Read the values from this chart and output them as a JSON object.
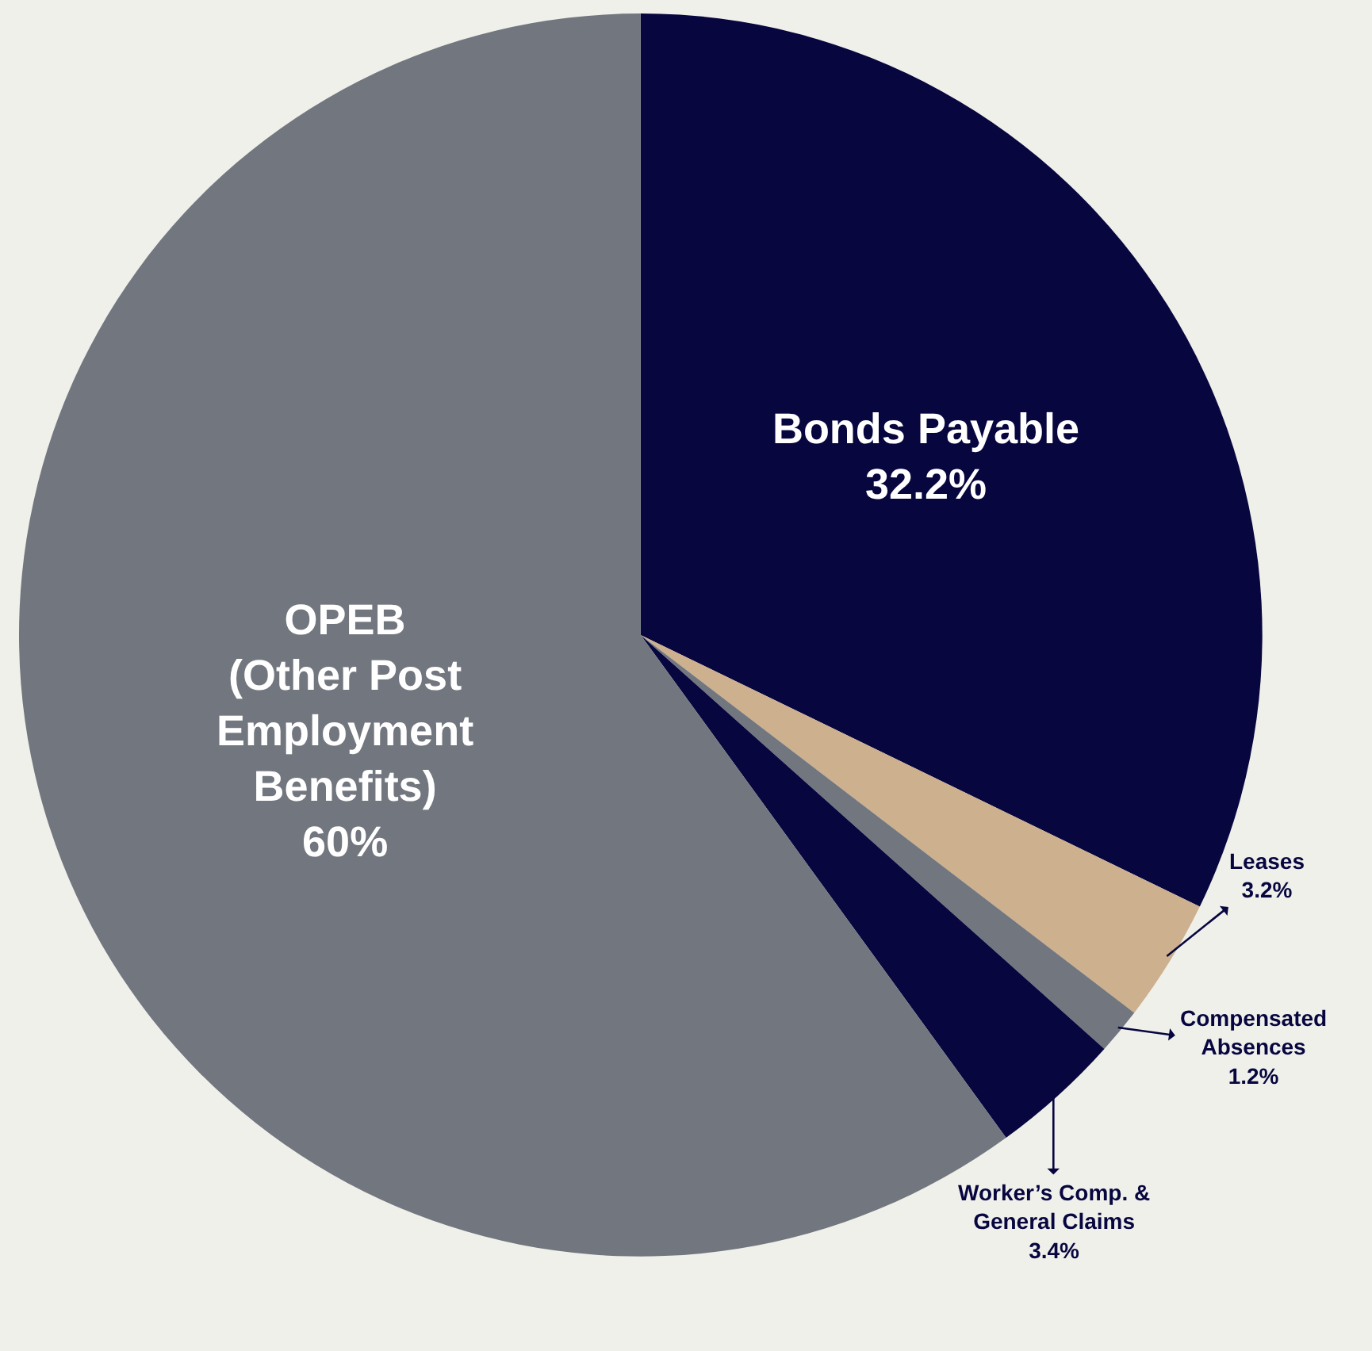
{
  "chart_data": {
    "type": "pie",
    "categories": [
      "Bonds Payable",
      "Leases",
      "Compensated\nAbsences",
      "Worker’s Comp. &\nGeneral Claims",
      "OPEB\n(Other Post\nEmployment\nBenefits)"
    ],
    "values": [
      32.2,
      3.2,
      1.2,
      3.4,
      60
    ],
    "colors": [
      "#07063f",
      "#cdb08e",
      "#72777f",
      "#07063f",
      "#72777f"
    ],
    "value_labels": [
      "32.2%",
      "3.2%",
      "1.2%",
      "3.4%",
      "60%"
    ]
  }
}
